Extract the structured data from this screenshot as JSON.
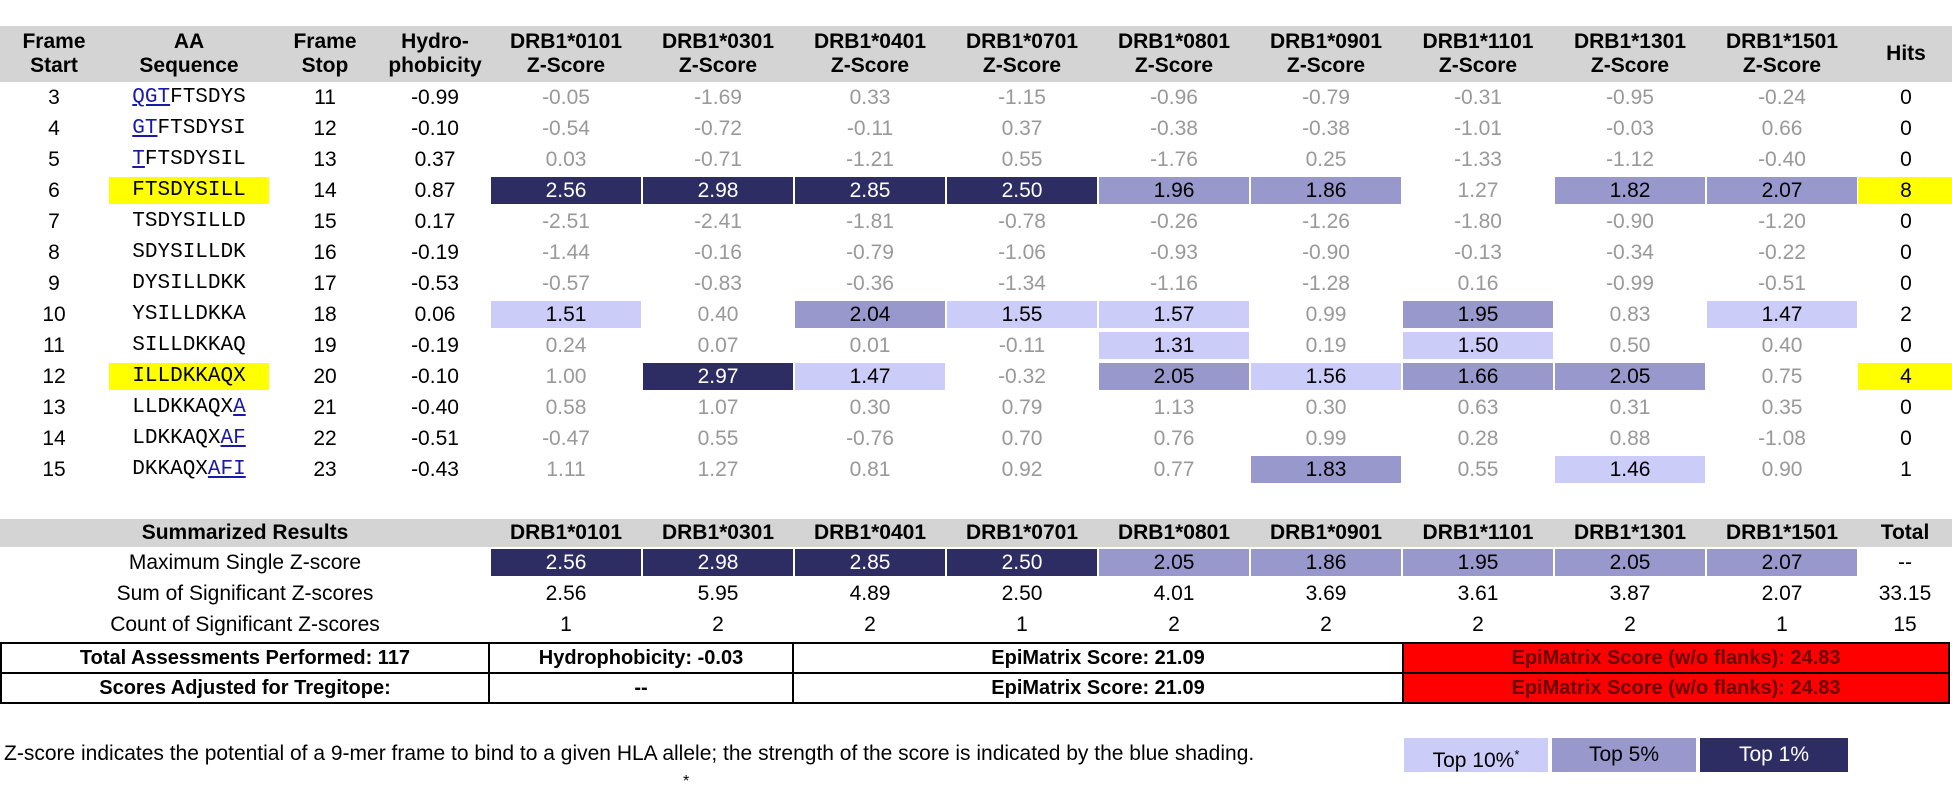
{
  "headers": [
    "Frame Start",
    "AA Sequence",
    "Frame Stop",
    "Hydro- phobicity",
    "DRB1*0101 Z-Score",
    "DRB1*0301 Z-Score",
    "DRB1*0401 Z-Score",
    "DRB1*0701 Z-Score",
    "DRB1*0801 Z-Score",
    "DRB1*0901 Z-Score",
    "DRB1*1101 Z-Score",
    "DRB1*1301 Z-Score",
    "DRB1*1501 Z-Score",
    "Hits"
  ],
  "header_lines": [
    [
      "Frame",
      "Start"
    ],
    [
      "AA",
      "Sequence"
    ],
    [
      "Frame",
      "Stop"
    ],
    [
      "Hydro-",
      "phobicity"
    ],
    [
      "DRB1*0101",
      "Z-Score"
    ],
    [
      "DRB1*0301",
      "Z-Score"
    ],
    [
      "DRB1*0401",
      "Z-Score"
    ],
    [
      "DRB1*0701",
      "Z-Score"
    ],
    [
      "DRB1*0801",
      "Z-Score"
    ],
    [
      "DRB1*0901",
      "Z-Score"
    ],
    [
      "DRB1*1101",
      "Z-Score"
    ],
    [
      "DRB1*1301",
      "Z-Score"
    ],
    [
      "DRB1*1501",
      "Z-Score"
    ],
    [
      "Hits",
      ""
    ]
  ],
  "rows": [
    {
      "start": "3",
      "seq_link": "QGT",
      "seq_rest": "FTSDYS",
      "seq_suffix": "",
      "highlight": false,
      "stop": "11",
      "hydro": "-0.99",
      "z": [
        "-0.05",
        "-1.69",
        "0.33",
        "-1.15",
        "-0.96",
        "-0.79",
        "-0.31",
        "-0.95",
        "-0.24"
      ],
      "tiers": [
        "",
        "",
        "",
        "",
        "",
        "",
        "",
        "",
        ""
      ],
      "hits": "0"
    },
    {
      "start": "4",
      "seq_link": "GT",
      "seq_rest": "FTSDYSI",
      "seq_suffix": "",
      "highlight": false,
      "stop": "12",
      "hydro": "-0.10",
      "z": [
        "-0.54",
        "-0.72",
        "-0.11",
        "0.37",
        "-0.38",
        "-0.38",
        "-1.01",
        "-0.03",
        "0.66"
      ],
      "tiers": [
        "",
        "",
        "",
        "",
        "",
        "",
        "",
        "",
        ""
      ],
      "hits": "0"
    },
    {
      "start": "5",
      "seq_link": "T",
      "seq_rest": "FTSDYSIL",
      "seq_suffix": "",
      "highlight": false,
      "stop": "13",
      "hydro": "0.37",
      "z": [
        "0.03",
        "-0.71",
        "-1.21",
        "0.55",
        "-1.76",
        "0.25",
        "-1.33",
        "-1.12",
        "-0.40"
      ],
      "tiers": [
        "",
        "",
        "",
        "",
        "",
        "",
        "",
        "",
        ""
      ],
      "hits": "0"
    },
    {
      "start": "6",
      "seq_link": "",
      "seq_rest": "FTSDYSILL",
      "seq_suffix": "",
      "highlight": true,
      "stop": "14",
      "hydro": "0.87",
      "z": [
        "2.56",
        "2.98",
        "2.85",
        "2.50",
        "1.96",
        "1.86",
        "1.27",
        "1.82",
        "2.07"
      ],
      "tiers": [
        "t1",
        "t1",
        "t1",
        "t1",
        "t5",
        "t5",
        "",
        "t5",
        "t5"
      ],
      "hits": "8"
    },
    {
      "start": "7",
      "seq_link": "",
      "seq_rest": "TSDYSILLD",
      "seq_suffix": "",
      "highlight": false,
      "stop": "15",
      "hydro": "0.17",
      "z": [
        "-2.51",
        "-2.41",
        "-1.81",
        "-0.78",
        "-0.26",
        "-1.26",
        "-1.80",
        "-0.90",
        "-1.20"
      ],
      "tiers": [
        "",
        "",
        "",
        "",
        "",
        "",
        "",
        "",
        ""
      ],
      "hits": "0"
    },
    {
      "start": "8",
      "seq_link": "",
      "seq_rest": "SDYSILLDK",
      "seq_suffix": "",
      "highlight": false,
      "stop": "16",
      "hydro": "-0.19",
      "z": [
        "-1.44",
        "-0.16",
        "-0.79",
        "-1.06",
        "-0.93",
        "-0.90",
        "-0.13",
        "-0.34",
        "-0.22"
      ],
      "tiers": [
        "",
        "",
        "",
        "",
        "",
        "",
        "",
        "",
        ""
      ],
      "hits": "0"
    },
    {
      "start": "9",
      "seq_link": "",
      "seq_rest": "DYSILLDKK",
      "seq_suffix": "",
      "highlight": false,
      "stop": "17",
      "hydro": "-0.53",
      "z": [
        "-0.57",
        "-0.83",
        "-0.36",
        "-1.34",
        "-1.16",
        "-1.28",
        "0.16",
        "-0.99",
        "-0.51"
      ],
      "tiers": [
        "",
        "",
        "",
        "",
        "",
        "",
        "",
        "",
        ""
      ],
      "hits": "0"
    },
    {
      "start": "10",
      "seq_link": "",
      "seq_rest": "YSILLDKKA",
      "seq_suffix": "",
      "highlight": false,
      "stop": "18",
      "hydro": "0.06",
      "z": [
        "1.51",
        "0.40",
        "2.04",
        "1.55",
        "1.57",
        "0.99",
        "1.95",
        "0.83",
        "1.47"
      ],
      "tiers": [
        "t10",
        "",
        "t5",
        "t10",
        "t10",
        "",
        "t5",
        "",
        "t10"
      ],
      "hits": "2"
    },
    {
      "start": "11",
      "seq_link": "",
      "seq_rest": "SILLDKKAQ",
      "seq_suffix": "",
      "highlight": false,
      "stop": "19",
      "hydro": "-0.19",
      "z": [
        "0.24",
        "0.07",
        "0.01",
        "-0.11",
        "1.31",
        "0.19",
        "1.50",
        "0.50",
        "0.40"
      ],
      "tiers": [
        "",
        "",
        "",
        "",
        "t10",
        "",
        "t10",
        "",
        ""
      ],
      "hits": "0"
    },
    {
      "start": "12",
      "seq_link": "",
      "seq_rest": "ILLDKKAQX",
      "seq_suffix": "",
      "highlight": true,
      "stop": "20",
      "hydro": "-0.10",
      "z": [
        "1.00",
        "2.97",
        "1.47",
        "-0.32",
        "2.05",
        "1.56",
        "1.66",
        "2.05",
        "0.75"
      ],
      "tiers": [
        "",
        "t1",
        "t10",
        "",
        "t5",
        "t10",
        "t5",
        "t5",
        ""
      ],
      "hits": "4"
    },
    {
      "start": "13",
      "seq_link": "",
      "seq_rest": "LLDKKAQX",
      "seq_suffix": "A",
      "highlight": false,
      "stop": "21",
      "hydro": "-0.40",
      "z": [
        "0.58",
        "1.07",
        "0.30",
        "0.79",
        "1.13",
        "0.30",
        "0.63",
        "0.31",
        "0.35"
      ],
      "tiers": [
        "",
        "",
        "",
        "",
        "",
        "",
        "",
        "",
        ""
      ],
      "hits": "0"
    },
    {
      "start": "14",
      "seq_link": "",
      "seq_rest": "LDKKAQX",
      "seq_suffix": "AF",
      "highlight": false,
      "stop": "22",
      "hydro": "-0.51",
      "z": [
        "-0.47",
        "0.55",
        "-0.76",
        "0.70",
        "0.76",
        "0.99",
        "0.28",
        "0.88",
        "-1.08"
      ],
      "tiers": [
        "",
        "",
        "",
        "",
        "",
        "",
        "",
        "",
        ""
      ],
      "hits": "0"
    },
    {
      "start": "15",
      "seq_link": "",
      "seq_rest": "DKKAQX",
      "seq_suffix": "AFI",
      "highlight": false,
      "stop": "23",
      "hydro": "-0.43",
      "z": [
        "1.11",
        "1.27",
        "0.81",
        "0.92",
        "0.77",
        "1.83",
        "0.55",
        "1.46",
        "0.90"
      ],
      "tiers": [
        "",
        "",
        "",
        "",
        "",
        "t5",
        "",
        "t10",
        ""
      ],
      "hits": "1"
    }
  ],
  "summary": {
    "title": "Summarized Results",
    "alleles": [
      "DRB1*0101",
      "DRB1*0301",
      "DRB1*0401",
      "DRB1*0701",
      "DRB1*0801",
      "DRB1*0901",
      "DRB1*1101",
      "DRB1*1301",
      "DRB1*1501"
    ],
    "total_label": "Total",
    "rows": [
      {
        "label": "Maximum Single Z-score",
        "values": [
          "2.56",
          "2.98",
          "2.85",
          "2.50",
          "2.05",
          "1.86",
          "1.95",
          "2.05",
          "2.07"
        ],
        "tiers": [
          "t1",
          "t1",
          "t1",
          "t1",
          "t5",
          "t5",
          "t5",
          "t5",
          "t5"
        ],
        "total": "--"
      },
      {
        "label": "Sum of Significant Z-scores",
        "values": [
          "2.56",
          "5.95",
          "4.89",
          "2.50",
          "4.01",
          "3.69",
          "3.61",
          "3.87",
          "2.07"
        ],
        "tiers": [
          "",
          "",
          "",
          "",
          "",
          "",
          "",
          "",
          ""
        ],
        "total": "33.15"
      },
      {
        "label": "Count of Significant Z-scores",
        "values": [
          "1",
          "2",
          "2",
          "1",
          "2",
          "2",
          "2",
          "2",
          "1"
        ],
        "tiers": [
          "",
          "",
          "",
          "",
          "",
          "",
          "",
          "",
          ""
        ],
        "total": "15"
      }
    ]
  },
  "assessments": [
    {
      "a": "Total Assessments Performed: 117",
      "b": "Hydrophobicity: -0.03",
      "c": "EpiMatrix Score: 21.09",
      "d": "EpiMatrix Score (w/o flanks): 24.83"
    },
    {
      "a": "Scores Adjusted for Tregitope:",
      "b": "--",
      "c": "EpiMatrix Score: 21.09",
      "d": "EpiMatrix Score (w/o flanks): 24.83"
    }
  ],
  "legend": {
    "text": "Z-score indicates the potential of a 9-mer frame to bind to a given HLA allele; the strength of the score is indicated by the blue shading.",
    "top10": "Top 10%",
    "top10_mark": "*",
    "top5": "Top 5%",
    "top1": "Top 1%",
    "footnote_mark": "*"
  },
  "colors": {
    "top1": "#2d2d63",
    "top5": "#9898cc",
    "top10": "#ccccf9",
    "highlight": "#ffff00",
    "header_bg": "#d4d4d4",
    "epimatrix_red": "#ff0000"
  }
}
